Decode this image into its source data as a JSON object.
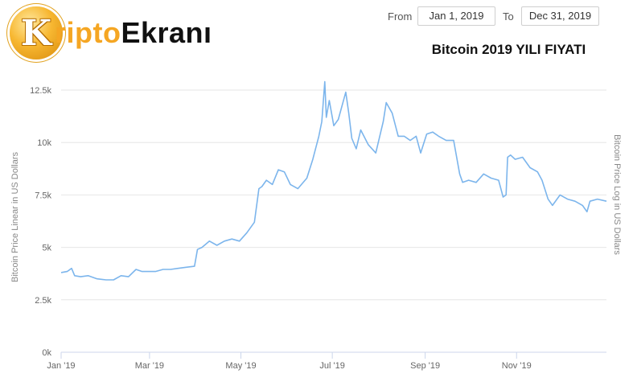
{
  "logo": {
    "badge_letter": "K",
    "text_part1": "ripto",
    "text_part2": "Ekranı"
  },
  "date_range": {
    "from_label": "From",
    "from_value": "Jan 1, 2019",
    "to_label": "To",
    "to_value": "Dec 31, 2019"
  },
  "colors": {
    "line": "#7cb5ec",
    "grid": "#e6e6e6",
    "logo_orange": "#f5a623"
  },
  "chart_data": {
    "type": "line",
    "title": "Bitcoin 2019 YILI FIYATI",
    "ylabel": "Bitcoin Price Linear in US Dollars",
    "ylabel_right": "Bitcoin Price Log in US Dollars",
    "xlabel": "",
    "ylim": [
      0,
      12500
    ],
    "xlim": [
      "2019-01-01",
      "2019-12-31"
    ],
    "yticks": [
      0,
      2500,
      5000,
      7500,
      10000,
      12500
    ],
    "ytick_labels": [
      "0k",
      "2.5k",
      "5k",
      "7.5k",
      "10k",
      "12.5k"
    ],
    "xticks": [
      "2019-01-01",
      "2019-03-01",
      "2019-05-01",
      "2019-07-01",
      "2019-09-01",
      "2019-11-01"
    ],
    "xtick_labels": [
      "Jan '19",
      "Mar '19",
      "May '19",
      "Jul '19",
      "Sep '19",
      "Nov '19"
    ],
    "grid": true,
    "series": [
      {
        "x": [
          "2019-01-01",
          "2019-01-05",
          "2019-01-08",
          "2019-01-10",
          "2019-01-14",
          "2019-01-19",
          "2019-01-25",
          "2019-01-31",
          "2019-02-05",
          "2019-02-10",
          "2019-02-15",
          "2019-02-20",
          "2019-02-24",
          "2019-02-28",
          "2019-03-05",
          "2019-03-10",
          "2019-03-15",
          "2019-03-20",
          "2019-03-25",
          "2019-03-31",
          "2019-04-02",
          "2019-04-05",
          "2019-04-10",
          "2019-04-15",
          "2019-04-20",
          "2019-04-25",
          "2019-04-30",
          "2019-05-05",
          "2019-05-10",
          "2019-05-13",
          "2019-05-15",
          "2019-05-18",
          "2019-05-22",
          "2019-05-26",
          "2019-05-30",
          "2019-06-03",
          "2019-06-08",
          "2019-06-14",
          "2019-06-18",
          "2019-06-22",
          "2019-06-24",
          "2019-06-26",
          "2019-06-27",
          "2019-06-29",
          "2019-07-02",
          "2019-07-05",
          "2019-07-10",
          "2019-07-12",
          "2019-07-14",
          "2019-07-17",
          "2019-07-20",
          "2019-07-25",
          "2019-07-30",
          "2019-08-04",
          "2019-08-06",
          "2019-08-10",
          "2019-08-14",
          "2019-08-18",
          "2019-08-22",
          "2019-08-26",
          "2019-08-29",
          "2019-09-02",
          "2019-09-06",
          "2019-09-10",
          "2019-09-15",
          "2019-09-20",
          "2019-09-24",
          "2019-09-26",
          "2019-09-30",
          "2019-10-05",
          "2019-10-10",
          "2019-10-15",
          "2019-10-20",
          "2019-10-23",
          "2019-10-25",
          "2019-10-26",
          "2019-10-28",
          "2019-10-31",
          "2019-11-05",
          "2019-11-10",
          "2019-11-15",
          "2019-11-18",
          "2019-11-22",
          "2019-11-25",
          "2019-11-30",
          "2019-12-05",
          "2019-12-10",
          "2019-12-15",
          "2019-12-18",
          "2019-12-20",
          "2019-12-25",
          "2019-12-31"
        ],
        "y": [
          3800,
          3850,
          4000,
          3650,
          3600,
          3650,
          3500,
          3450,
          3450,
          3650,
          3600,
          3950,
          3850,
          3850,
          3850,
          3950,
          3950,
          4000,
          4050,
          4100,
          4900,
          5000,
          5300,
          5100,
          5300,
          5400,
          5300,
          5700,
          6200,
          7800,
          7900,
          8200,
          8000,
          8700,
          8600,
          8000,
          7800,
          8300,
          9200,
          10300,
          11000,
          12900,
          11200,
          12000,
          10800,
          11100,
          12400,
          11400,
          10200,
          9700,
          10600,
          9900,
          9500,
          11000,
          11900,
          11400,
          10300,
          10300,
          10100,
          10300,
          9500,
          10400,
          10500,
          10300,
          10100,
          10100,
          8500,
          8100,
          8200,
          8100,
          8500,
          8300,
          8200,
          7400,
          7500,
          9300,
          9400,
          9200,
          9300,
          8800,
          8600,
          8200,
          7300,
          7000,
          7500,
          7300,
          7200,
          7000,
          6700,
          7200,
          7300,
          7200
        ]
      }
    ]
  }
}
